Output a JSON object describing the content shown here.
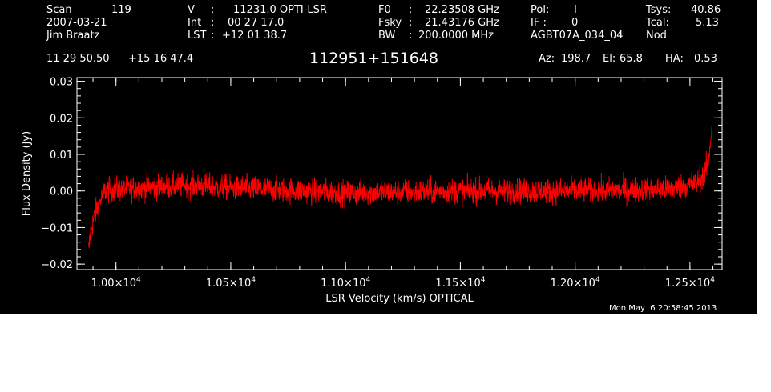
{
  "header": {
    "scan_label": "Scan",
    "scan_value": "119",
    "date": "2007-03-21",
    "observer": "Jim Braatz",
    "v_label": "V",
    "v_value": "11231.0 OPTI-LSR",
    "int_label": "Int",
    "int_value": "00 27 17.0",
    "lst_label": "LST",
    "lst_value": "+12 01 38.7",
    "f0_label": "F0",
    "f0_value": "22.23508 GHz",
    "fsky_label": "Fsky",
    "fsky_value": "21.43176 GHz",
    "bw_label": "BW",
    "bw_value": "200.0000 MHz",
    "pol_label": "Pol:",
    "pol_value": "I",
    "if_label": "IF :",
    "if_value": "0",
    "project": "AGBT07A_034_04",
    "tsys_label": "Tsys:",
    "tsys_value": "40.86",
    "tcal_label": "Tcal:",
    "tcal_value": "5.13",
    "mode": "Nod",
    "ra": "11 29 50.50",
    "dec": "+15 16 47.4",
    "source": "112951+151648",
    "az_label": "Az:",
    "az_value": "198.7",
    "el_label": "El:",
    "el_value": "65.8",
    "ha_label": "HA:",
    "ha_value": "0.53",
    "timestamp": "Mon May  6 20:58:45 2013"
  },
  "chart_data": {
    "type": "line",
    "xlabel": "LSR Velocity (km/s) OPTICAL",
    "ylabel": "Flux Density (Jy)",
    "xlim": [
      9830,
      12640
    ],
    "ylim": [
      -0.0215,
      0.031
    ],
    "x_ticks": [
      {
        "value": 10000,
        "mantissa": "1.00×10",
        "exp": "4"
      },
      {
        "value": 10500,
        "mantissa": "1.05×10",
        "exp": "4"
      },
      {
        "value": 11000,
        "mantissa": "1.10×10",
        "exp": "4"
      },
      {
        "value": 11500,
        "mantissa": "1.15×10",
        "exp": "4"
      },
      {
        "value": 12000,
        "mantissa": "1.20×10",
        "exp": "4"
      },
      {
        "value": 12500,
        "mantissa": "1.25×10",
        "exp": "4"
      }
    ],
    "y_ticks": [
      {
        "value": -0.02,
        "label": "−0.02"
      },
      {
        "value": -0.01,
        "label": "−0.01"
      },
      {
        "value": 0.0,
        "label": "0.00"
      },
      {
        "value": 0.01,
        "label": "0.01"
      },
      {
        "value": 0.02,
        "label": "0.02"
      },
      {
        "value": 0.03,
        "label": "0.03"
      }
    ],
    "series": [
      {
        "color": "#ff0000",
        "x_range": [
          9880,
          12595
        ],
        "n_points": 2400,
        "baseline": 0.0,
        "noise_amplitude": 0.0045,
        "x": [
          9880,
          9890,
          9910,
          9950,
          10000,
          10300,
          11000,
          11500,
          12000,
          12400,
          12520,
          12560,
          12580,
          12595
        ],
        "y": [
          -0.017,
          -0.011,
          -0.006,
          0.0,
          0.0005,
          0.0015,
          -0.0005,
          0.0,
          0.0,
          0.0005,
          0.002,
          0.004,
          0.008,
          0.017
        ]
      }
    ]
  }
}
